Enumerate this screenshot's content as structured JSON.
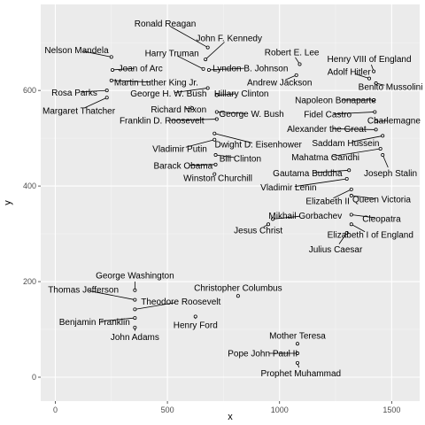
{
  "chart_data": {
    "type": "scatter",
    "xlabel": "x",
    "ylabel": "y",
    "xlim": [
      -65,
      1625
    ],
    "ylim": [
      -50,
      780
    ],
    "xticks": [
      0,
      500,
      1000,
      1500
    ],
    "yticks": [
      0,
      200,
      400,
      600
    ],
    "grid": true,
    "legend": "none",
    "colors": {
      "panel": "#ebebeb",
      "grid_major": "#ffffff",
      "grid_minor": "#f5f5f5",
      "point": "#000000"
    },
    "points": [
      {
        "name": "Ronald Reagan",
        "x": 680,
        "y": 690,
        "lx": 490,
        "ly": 740
      },
      {
        "name": "John F. Kennedy",
        "x": 670,
        "y": 665,
        "lx": 775,
        "ly": 710
      },
      {
        "name": "Nelson Mandela",
        "x": 250,
        "y": 670,
        "lx": 95,
        "ly": 685
      },
      {
        "name": "Harry Truman",
        "x": 660,
        "y": 645,
        "lx": 520,
        "ly": 678
      },
      {
        "name": "Robert E. Lee",
        "x": 1090,
        "y": 655,
        "lx": 1055,
        "ly": 680
      },
      {
        "name": "Henry VIII of England",
        "x": 1420,
        "y": 640,
        "lx": 1400,
        "ly": 666
      },
      {
        "name": "Joan of Arc",
        "x": 255,
        "y": 643,
        "lx": 380,
        "ly": 647
      },
      {
        "name": "Lyndon B. Johnson",
        "x": 685,
        "y": 643,
        "lx": 870,
        "ly": 647
      },
      {
        "name": "Adolf Hitler",
        "x": 1400,
        "y": 625,
        "lx": 1310,
        "ly": 639
      },
      {
        "name": "Martin Luther King Jr.",
        "x": 250,
        "y": 621,
        "lx": 450,
        "ly": 617
      },
      {
        "name": "Andrew Jackson",
        "x": 1075,
        "y": 632,
        "lx": 1000,
        "ly": 617
      },
      {
        "name": "Benito Mussolini",
        "x": 1430,
        "y": 615,
        "lx": 1495,
        "ly": 608
      },
      {
        "name": "Rosa Parks",
        "x": 230,
        "y": 600,
        "lx": 85,
        "ly": 596
      },
      {
        "name": "George H. W. Bush",
        "x": 680,
        "y": 605,
        "lx": 505,
        "ly": 594
      },
      {
        "name": "Hillary Clinton",
        "x": 720,
        "y": 590,
        "lx": 830,
        "ly": 594
      },
      {
        "name": "Napoleon Bonaparte",
        "x": 1420,
        "y": 580,
        "lx": 1250,
        "ly": 580
      },
      {
        "name": "Margaret Thatcher",
        "x": 230,
        "y": 585,
        "lx": 105,
        "ly": 558
      },
      {
        "name": "Richard Nixon",
        "x": 610,
        "y": 563,
        "lx": 550,
        "ly": 560
      },
      {
        "name": "George W. Bush",
        "x": 720,
        "y": 555,
        "lx": 875,
        "ly": 551
      },
      {
        "name": "Fidel Castro",
        "x": 1425,
        "y": 555,
        "lx": 1215,
        "ly": 550
      },
      {
        "name": "Franklin D. Roosevelt",
        "x": 720,
        "y": 540,
        "lx": 475,
        "ly": 537
      },
      {
        "name": "Charlemagne",
        "x": 1430,
        "y": 535,
        "lx": 1510,
        "ly": 537
      },
      {
        "name": "Alexander the Great",
        "x": 1430,
        "y": 518,
        "lx": 1210,
        "ly": 520
      },
      {
        "name": "Dwight D. Eisenhower",
        "x": 710,
        "y": 510,
        "lx": 905,
        "ly": 487
      },
      {
        "name": "Saddam Hussein",
        "x": 1460,
        "y": 505,
        "lx": 1295,
        "ly": 490
      },
      {
        "name": "Vladimir Putin",
        "x": 710,
        "y": 497,
        "lx": 555,
        "ly": 478
      },
      {
        "name": "Mahatma Gandhi",
        "x": 1450,
        "y": 478,
        "lx": 1205,
        "ly": 460
      },
      {
        "name": "Bill Clinton",
        "x": 715,
        "y": 465,
        "lx": 825,
        "ly": 458
      },
      {
        "name": "Barack Obama",
        "x": 715,
        "y": 445,
        "lx": 570,
        "ly": 443
      },
      {
        "name": "Joseph Stalin",
        "x": 1460,
        "y": 465,
        "lx": 1495,
        "ly": 427
      },
      {
        "name": "Gautama Buddha",
        "x": 1310,
        "y": 433,
        "lx": 1125,
        "ly": 427
      },
      {
        "name": "Winston Churchill",
        "x": 710,
        "y": 425,
        "lx": 725,
        "ly": 417
      },
      {
        "name": "Vladimir Lenin",
        "x": 1300,
        "y": 415,
        "lx": 1040,
        "ly": 397
      },
      {
        "name": "Elizabeth II",
        "x": 1320,
        "y": 393,
        "lx": 1215,
        "ly": 369
      },
      {
        "name": "Queen Victoria",
        "x": 1320,
        "y": 380,
        "lx": 1455,
        "ly": 372
      },
      {
        "name": "Mikhail Gorbachev",
        "x": 970,
        "y": 331,
        "lx": 1115,
        "ly": 338
      },
      {
        "name": "Cleopatra",
        "x": 1320,
        "y": 340,
        "lx": 1455,
        "ly": 332
      },
      {
        "name": "Elizabeth I of England",
        "x": 1320,
        "y": 320,
        "lx": 1405,
        "ly": 298
      },
      {
        "name": "Jesus Christ",
        "x": 950,
        "y": 320,
        "lx": 905,
        "ly": 308
      },
      {
        "name": "Julius Caesar",
        "x": 1300,
        "y": 302,
        "lx": 1250,
        "ly": 268
      },
      {
        "name": "George Washington",
        "x": 355,
        "y": 182,
        "lx": 355,
        "ly": 213
      },
      {
        "name": "Thomas Jefferson",
        "x": 355,
        "y": 162,
        "lx": 125,
        "ly": 183
      },
      {
        "name": "Christopher Columbus",
        "x": 815,
        "y": 170,
        "lx": 815,
        "ly": 187
      },
      {
        "name": "Theodore Roosevelt",
        "x": 355,
        "y": 142,
        "lx": 560,
        "ly": 158
      },
      {
        "name": "Benjamin Franklin",
        "x": 355,
        "y": 124,
        "lx": 175,
        "ly": 116
      },
      {
        "name": "Henry Ford",
        "x": 625,
        "y": 127,
        "lx": 625,
        "ly": 109
      },
      {
        "name": "John Adams",
        "x": 355,
        "y": 104,
        "lx": 355,
        "ly": 84
      },
      {
        "name": "Mother Teresa",
        "x": 1080,
        "y": 70,
        "lx": 1080,
        "ly": 87
      },
      {
        "name": "Pope John Paul II",
        "x": 1080,
        "y": 50,
        "lx": 925,
        "ly": 50
      },
      {
        "name": "Prophet Muhammad",
        "x": 1080,
        "y": 30,
        "lx": 1095,
        "ly": 8
      }
    ]
  }
}
